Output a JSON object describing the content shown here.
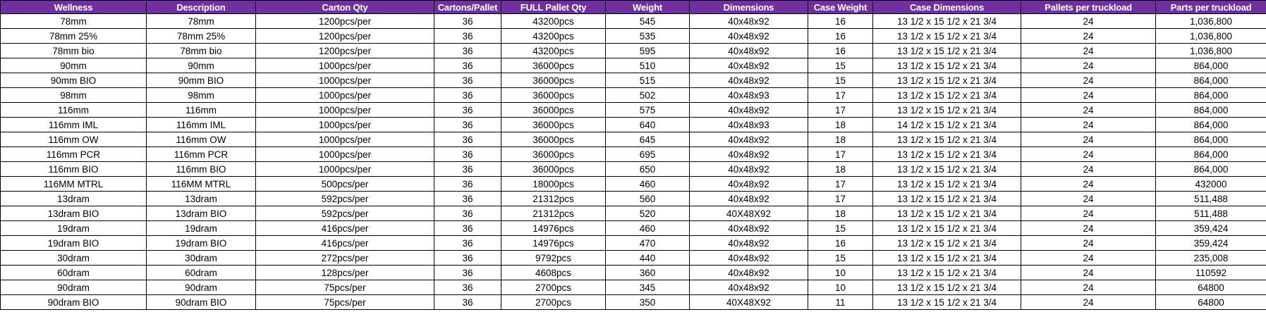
{
  "colors": {
    "header_bg": "#7030A0",
    "header_text": "#FFFFFF",
    "grid": "#000000",
    "row_bg": "#FFFFFF"
  },
  "table": {
    "columns": [
      "Wellness",
      "Description",
      "Carton Qty",
      "Cartons/Pallet",
      "FULL Pallet Qty",
      "Weight",
      "Dimensions",
      "Case Weight",
      "Case Dimensions",
      "Pallets per truckload",
      "Parts per truckload"
    ],
    "rows": [
      [
        "78mm",
        "78mm",
        "1200pcs/per",
        "36",
        "43200pcs",
        "545",
        "40x48x92",
        "16",
        "13 1/2 x 15 1/2 x 21 3/4",
        "24",
        "1,036,800"
      ],
      [
        "78mm 25%",
        "78mm 25%",
        "1200pcs/per",
        "36",
        "43200pcs",
        "535",
        "40x48x92",
        "16",
        "13 1/2 x 15 1/2 x 21 3/4",
        "24",
        "1,036,800"
      ],
      [
        "78mm bio",
        "78mm bio",
        "1200pcs/per",
        "36",
        "43200pcs",
        "595",
        "40x48x92",
        "16",
        "13 1/2 x 15 1/2 x 21 3/4",
        "24",
        "1,036,800"
      ],
      [
        "90mm",
        "90mm",
        "1000pcs/per",
        "36",
        "36000pcs",
        "510",
        "40x48x92",
        "15",
        "13 1/2 x 15 1/2 x 21 3/4",
        "24",
        "864,000"
      ],
      [
        "90mm BIO",
        "90mm BIO",
        "1000pcs/per",
        "36",
        "36000pcs",
        "515",
        "40x48x92",
        "15",
        "13 1/2 x 15 1/2 x 21 3/4",
        "24",
        "864,000"
      ],
      [
        "98mm",
        "98mm",
        "1000pcs/per",
        "36",
        "36000pcs",
        "502",
        "40x48x93",
        "17",
        "13 1/2 x 15 1/2 x 21 3/4",
        "24",
        "864,000"
      ],
      [
        "116mm",
        "116mm",
        "1000pcs/per",
        "36",
        "36000pcs",
        "575",
        "40x48x92",
        "17",
        "13 1/2 x 15 1/2 x 21 3/4",
        "24",
        "864,000"
      ],
      [
        "116mm IML",
        "116mm IML",
        "1000pcs/per",
        "36",
        "36000pcs",
        "640",
        "40x48x93",
        "18",
        "14 1/2 x 15 1/2 x 21 3/4",
        "24",
        "864,000"
      ],
      [
        "116mm OW",
        "116mm OW",
        "1000pcs/per",
        "36",
        "36000pcs",
        "645",
        "40x48x92",
        "18",
        "13 1/2 x 15 1/2 x 21 3/4",
        "24",
        "864,000"
      ],
      [
        "116mm PCR",
        "116mm PCR",
        "1000pcs/per",
        "36",
        "36000pcs",
        "695",
        "40x48x92",
        "17",
        "13 1/2 x 15 1/2 x 21 3/4",
        "24",
        "864,000"
      ],
      [
        "116mm BIO",
        "116mm BIO",
        "1000pcs/per",
        "36",
        "36000pcs",
        "650",
        "40x48x92",
        "18",
        "13 1/2 x 15 1/2 x 21 3/4",
        "24",
        "864,000"
      ],
      [
        "116MM MTRL",
        "116MM MTRL",
        "500pcs/per",
        "36",
        "18000pcs",
        "460",
        "40x48x92",
        "17",
        "13 1/2 x 15 1/2 x 21 3/4",
        "24",
        "432000"
      ],
      [
        "13dram",
        "13dram",
        "592pcs/per",
        "36",
        "21312pcs",
        "560",
        "40x48x92",
        "17",
        "13 1/2 x 15 1/2 x 21 3/4",
        "24",
        "511,488"
      ],
      [
        "13dram BIO",
        "13dram BIO",
        "592pcs/per",
        "36",
        "21312pcs",
        "520",
        "40X48X92",
        "18",
        "13 1/2 x 15 1/2 x 21 3/4",
        "24",
        "511,488"
      ],
      [
        "19dram",
        "19dram",
        "416pcs/per",
        "36",
        "14976pcs",
        "460",
        "40x48x92",
        "15",
        "13 1/2 x 15 1/2 x 21 3/4",
        "24",
        "359,424"
      ],
      [
        "19dram BIO",
        "19dram BIO",
        "416pcs/per",
        "36",
        "14976pcs",
        "470",
        "40x48x92",
        "16",
        "13 1/2 x 15 1/2 x 21 3/4",
        "24",
        "359,424"
      ],
      [
        "30dram",
        "30dram",
        "272pcs/per",
        "36",
        "9792pcs",
        "440",
        "40x48x92",
        "15",
        "13 1/2 x 15 1/2 x 21 3/4",
        "24",
        "235,008"
      ],
      [
        "60dram",
        "60dram",
        "128pcs/per",
        "36",
        "4608pcs",
        "360",
        "40x48x92",
        "10",
        "13 1/2 x 15 1/2 x 21 3/4",
        "24",
        "110592"
      ],
      [
        "90dram",
        "90dram",
        "75pcs/per",
        "36",
        "2700pcs",
        "345",
        "40x48x92",
        "10",
        "13 1/2 x 15 1/2 x 21 3/4",
        "24",
        "64800"
      ],
      [
        "90dram BIO",
        "90dram BIO",
        "75pcs/per",
        "36",
        "2700pcs",
        "350",
        "40X48X92",
        "11",
        "13 1/2 x 15 1/2 x 21 3/4",
        "24",
        "64800"
      ]
    ],
    "column_keys": [
      "wellness",
      "description",
      "carton-qty",
      "cartons-per-pallet",
      "full-pallet-qty",
      "weight",
      "dimensions",
      "case-weight",
      "case-dimensions",
      "pallets-per-truckload",
      "parts-per-truckload"
    ]
  }
}
